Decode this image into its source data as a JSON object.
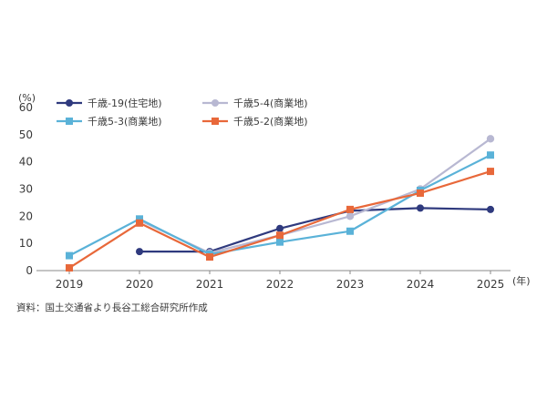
{
  "chart_data": {
    "type": "line",
    "x_unit_label": "(年)",
    "y_unit_label": "(%)",
    "ylim": [
      0,
      60
    ],
    "y_ticks": [
      0,
      10,
      20,
      30,
      40,
      50,
      60
    ],
    "x": [
      "2019",
      "2020",
      "2021",
      "2022",
      "2023",
      "2024",
      "2025"
    ],
    "grid": false,
    "legend_position": "top-left",
    "series": [
      {
        "name": "千歳-19(住宅地)",
        "color": "#2f3a7e",
        "values": [
          null,
          7,
          7,
          15.5,
          22,
          23,
          22.5
        ]
      },
      {
        "name": "千歳5-4(商業地)",
        "color": "#b8b8d2",
        "values": [
          null,
          18.5,
          6.5,
          13,
          20,
          30,
          48.5
        ]
      },
      {
        "name": "千歳5-3(商業地)",
        "color": "#5ab2d8",
        "values": [
          5.5,
          19,
          6,
          10.5,
          14.5,
          29.5,
          42.5
        ]
      },
      {
        "name": "千歳5-2(商業地)",
        "color": "#e8683a",
        "values": [
          1,
          17.5,
          5,
          13,
          22.5,
          28.5,
          36.5
        ]
      }
    ],
    "source": "資料：国土交通省より長谷工総合研究所作成"
  }
}
